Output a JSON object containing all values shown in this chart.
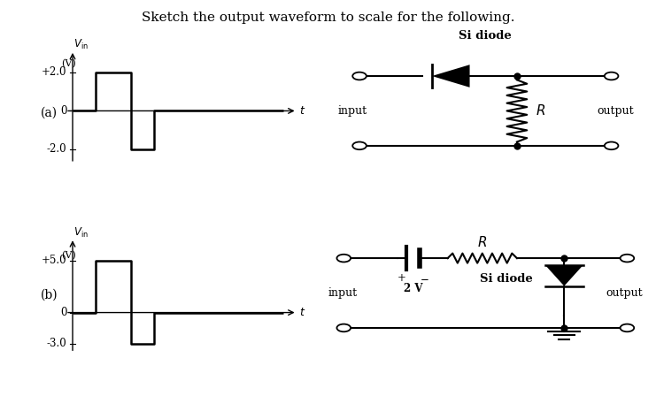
{
  "title": "Sketch the output waveform to scale for the following.",
  "title_fontsize": 11,
  "bg_color": "#ffffff",
  "panel_a": {
    "label": "(a)",
    "ytick_labels": [
      "+2.0",
      "0",
      "-2.0"
    ],
    "yticks": [
      2.0,
      0.0,
      -2.0
    ],
    "ylim": [
      -3.5,
      3.5
    ],
    "waveform_x": [
      0,
      1.0,
      1.0,
      2.5,
      2.5,
      3.5,
      3.5,
      9.0
    ],
    "waveform_y": [
      0,
      0,
      2.0,
      2.0,
      -2.0,
      -2.0,
      0,
      0
    ]
  },
  "panel_b": {
    "label": "(b)",
    "ytick_labels": [
      "+5.0",
      "0",
      "-3.0"
    ],
    "yticks": [
      5.0,
      0.0,
      -3.0
    ],
    "ylim": [
      -5.0,
      8.0
    ],
    "waveform_x": [
      0,
      1.0,
      1.0,
      2.5,
      2.5,
      3.5,
      3.5,
      9.0
    ],
    "waveform_y": [
      0,
      0,
      5.0,
      5.0,
      -3.0,
      -3.0,
      0,
      0
    ]
  },
  "circuit_a": {
    "si_diode_label": "Si diode",
    "R_label": "R",
    "input_label": "input",
    "output_label": "output"
  },
  "circuit_b": {
    "R_label": "R",
    "V_label": "2 V",
    "si_diode_label": "Si diode",
    "input_label": "input",
    "output_label": "output",
    "plus_label": "+",
    "minus_label": "-"
  }
}
